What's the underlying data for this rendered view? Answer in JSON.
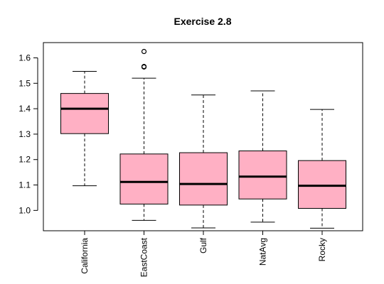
{
  "chart_data": {
    "type": "boxplot",
    "title": "Exercise 2.8",
    "xlabel": "",
    "ylabel": "",
    "ylim": [
      0.92,
      1.66
    ],
    "yticks": [
      1.0,
      1.1,
      1.2,
      1.3,
      1.4,
      1.5,
      1.6
    ],
    "ytick_labels": [
      "1.0",
      "1.1",
      "1.2",
      "1.3",
      "1.4",
      "1.5",
      "1.6"
    ],
    "box_fill": "#ffb0c4",
    "grid": false,
    "categories": [
      "California",
      "EastCoast",
      "Gulf",
      "NatAvg",
      "Rocky"
    ],
    "boxes": [
      {
        "name": "California",
        "whisker_low": 1.097,
        "q1": 1.302,
        "median": 1.4,
        "q3": 1.46,
        "whisker_high": 1.547,
        "outliers": []
      },
      {
        "name": "EastCoast",
        "whisker_low": 0.961,
        "q1": 1.025,
        "median": 1.112,
        "q3": 1.222,
        "whisker_high": 1.52,
        "outliers": [
          1.566,
          1.564,
          1.625
        ]
      },
      {
        "name": "Gulf",
        "whisker_low": 0.931,
        "q1": 1.021,
        "median": 1.104,
        "q3": 1.227,
        "whisker_high": 1.454,
        "outliers": []
      },
      {
        "name": "NatAvg",
        "whisker_low": 0.954,
        "q1": 1.045,
        "median": 1.133,
        "q3": 1.234,
        "whisker_high": 1.47,
        "outliers": []
      },
      {
        "name": "Rocky",
        "whisker_low": 0.93,
        "q1": 1.008,
        "median": 1.097,
        "q3": 1.196,
        "whisker_high": 1.397,
        "outliers": []
      }
    ]
  }
}
